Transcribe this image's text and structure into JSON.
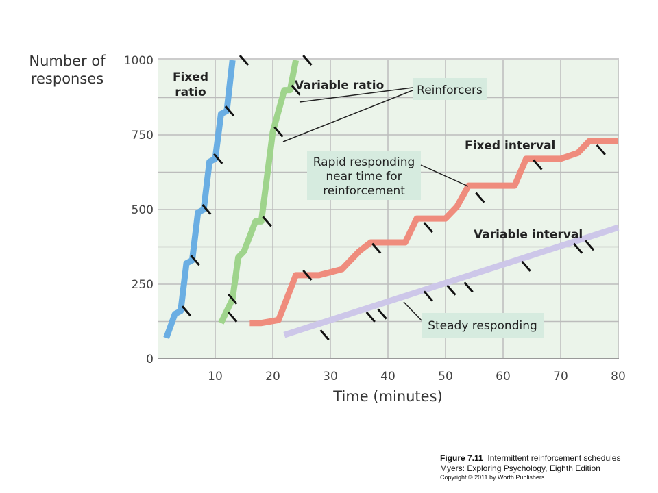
{
  "chart_data": {
    "type": "line",
    "title": "",
    "xlabel": "Time (minutes)",
    "ylabel_lines": [
      "Number of",
      "responses"
    ],
    "xlim": [
      0,
      80
    ],
    "ylim": [
      0,
      1000
    ],
    "x_ticks": [
      10,
      20,
      30,
      40,
      50,
      60,
      70,
      80
    ],
    "y_ticks": [
      0,
      250,
      500,
      750,
      1000
    ],
    "x_tick_labels": [
      "10",
      "20",
      "30",
      "40",
      "50",
      "60",
      "70",
      "80"
    ],
    "y_tick_labels": [
      "0",
      "250",
      "500",
      "750",
      "1000"
    ],
    "grid": true,
    "series": [
      {
        "name_lines": [
          "Fixed",
          "ratio"
        ],
        "color": "#6aaee3",
        "points": [
          [
            1.5,
            70
          ],
          [
            3,
            150
          ],
          [
            4,
            160
          ],
          [
            5,
            320
          ],
          [
            6,
            330
          ],
          [
            7,
            490
          ],
          [
            8,
            500
          ],
          [
            9,
            660
          ],
          [
            10,
            670
          ],
          [
            11,
            820
          ],
          [
            12,
            830
          ],
          [
            13,
            1000
          ]
        ],
        "reinforcers": [
          [
            5,
            160
          ],
          [
            6.5,
            330
          ],
          [
            8.5,
            500
          ],
          [
            10.5,
            670
          ],
          [
            12.5,
            830
          ],
          [
            15,
            1000
          ]
        ]
      },
      {
        "name_lines": [
          "Variable ratio"
        ],
        "color": "#9fd48c",
        "points": [
          [
            11,
            120
          ],
          [
            13,
            200
          ],
          [
            14,
            340
          ],
          [
            15,
            360
          ],
          [
            17,
            460
          ],
          [
            18,
            460
          ],
          [
            20,
            760
          ],
          [
            22,
            900
          ],
          [
            23,
            900
          ],
          [
            24,
            1000
          ]
        ],
        "reinforcers": [
          [
            13,
            140
          ],
          [
            13,
            200
          ],
          [
            19,
            460
          ],
          [
            21,
            760
          ],
          [
            24,
            900
          ],
          [
            26,
            1000
          ]
        ]
      },
      {
        "name_lines": [
          "Fixed interval"
        ],
        "color": "#ef8c7d",
        "points": [
          [
            16,
            120
          ],
          [
            18,
            120
          ],
          [
            21,
            130
          ],
          [
            24,
            280
          ],
          [
            28,
            280
          ],
          [
            32,
            300
          ],
          [
            35,
            360
          ],
          [
            37,
            390
          ],
          [
            43,
            390
          ],
          [
            45,
            470
          ],
          [
            50,
            470
          ],
          [
            52,
            510
          ],
          [
            54,
            580
          ],
          [
            62,
            580
          ],
          [
            64,
            670
          ],
          [
            70,
            670
          ],
          [
            73,
            690
          ],
          [
            75,
            730
          ],
          [
            80,
            730
          ]
        ],
        "reinforcers": [
          [
            26,
            280
          ],
          [
            38,
            370
          ],
          [
            47,
            440
          ],
          [
            56,
            540
          ],
          [
            66,
            650
          ],
          [
            77,
            700
          ]
        ]
      },
      {
        "name_lines": [
          "Variable interval"
        ],
        "color": "#cdc7e9",
        "points": [
          [
            22,
            80
          ],
          [
            80,
            440
          ]
        ],
        "reinforcers": [
          [
            29,
            80
          ],
          [
            37,
            140
          ],
          [
            39,
            150
          ],
          [
            47,
            210
          ],
          [
            51,
            230
          ],
          [
            54,
            240
          ],
          [
            64,
            310
          ],
          [
            73,
            370
          ],
          [
            75,
            380
          ]
        ]
      }
    ],
    "annotations": {
      "reinforcers": "Reinforcers",
      "rapid_lines": [
        "Rapid responding",
        "near time for",
        "reinforcement"
      ],
      "steady": "Steady responding"
    }
  },
  "caption": {
    "figure_label": "Figure 7.11",
    "figure_title": "Intermittent reinforcement schedules",
    "source": "Myers: Exploring Psychology, Eighth Edition",
    "copyright": "Copyright © 2011 by Worth Publishers"
  },
  "colors": {
    "plot_background": "#ebf4ea",
    "grid": "#bcbcbc",
    "annotation_box": "#d6ebdf"
  }
}
